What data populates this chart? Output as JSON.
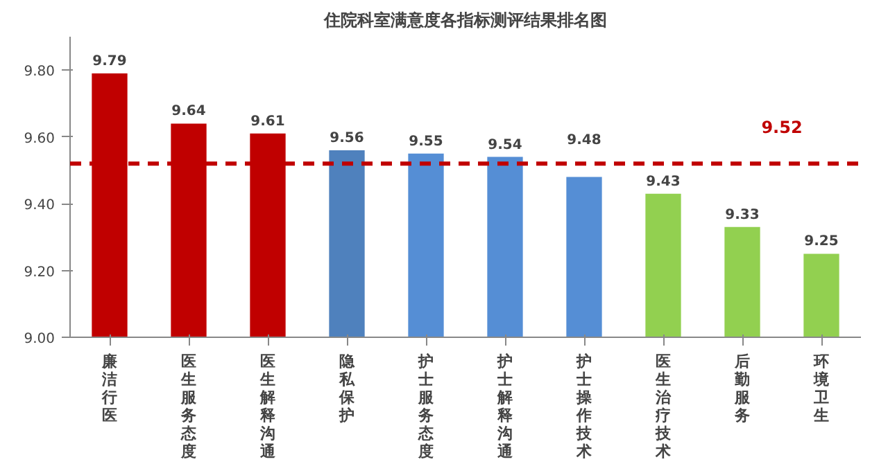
{
  "chart_data": {
    "type": "bar",
    "title": "住院科室满意度各指标测评结果排名图",
    "categories": [
      "廉洁行医",
      "医生服务态度",
      "医生解释沟通",
      "隐私保护",
      "护士服务态度",
      "护士解释沟通",
      "护士操作技术",
      "医生治疗技术",
      "后勤服务",
      "环境卫生"
    ],
    "values": [
      9.79,
      9.64,
      9.61,
      9.56,
      9.55,
      9.54,
      9.48,
      9.43,
      9.33,
      9.25
    ],
    "colors": [
      "#c00000",
      "#c00000",
      "#c00000",
      "#4f81bd",
      "#558ed5",
      "#558ed5",
      "#558ed5",
      "#92d050",
      "#92d050",
      "#92d050"
    ],
    "ylim": [
      9.0,
      9.9
    ],
    "yticks": [
      {
        "value": 9.0,
        "label": "9.00"
      },
      {
        "value": 9.2,
        "label": "9.20"
      },
      {
        "value": 9.4,
        "label": "9.40"
      },
      {
        "value": 9.6,
        "label": "9.60"
      },
      {
        "value": 9.8,
        "label": "9.80"
      }
    ],
    "ref_lines": [
      {
        "axis": "y",
        "value": 9.52,
        "label": "9.52",
        "color": "#c00000",
        "line_style": "dashed"
      }
    ],
    "data_labels": true,
    "grid": false
  }
}
